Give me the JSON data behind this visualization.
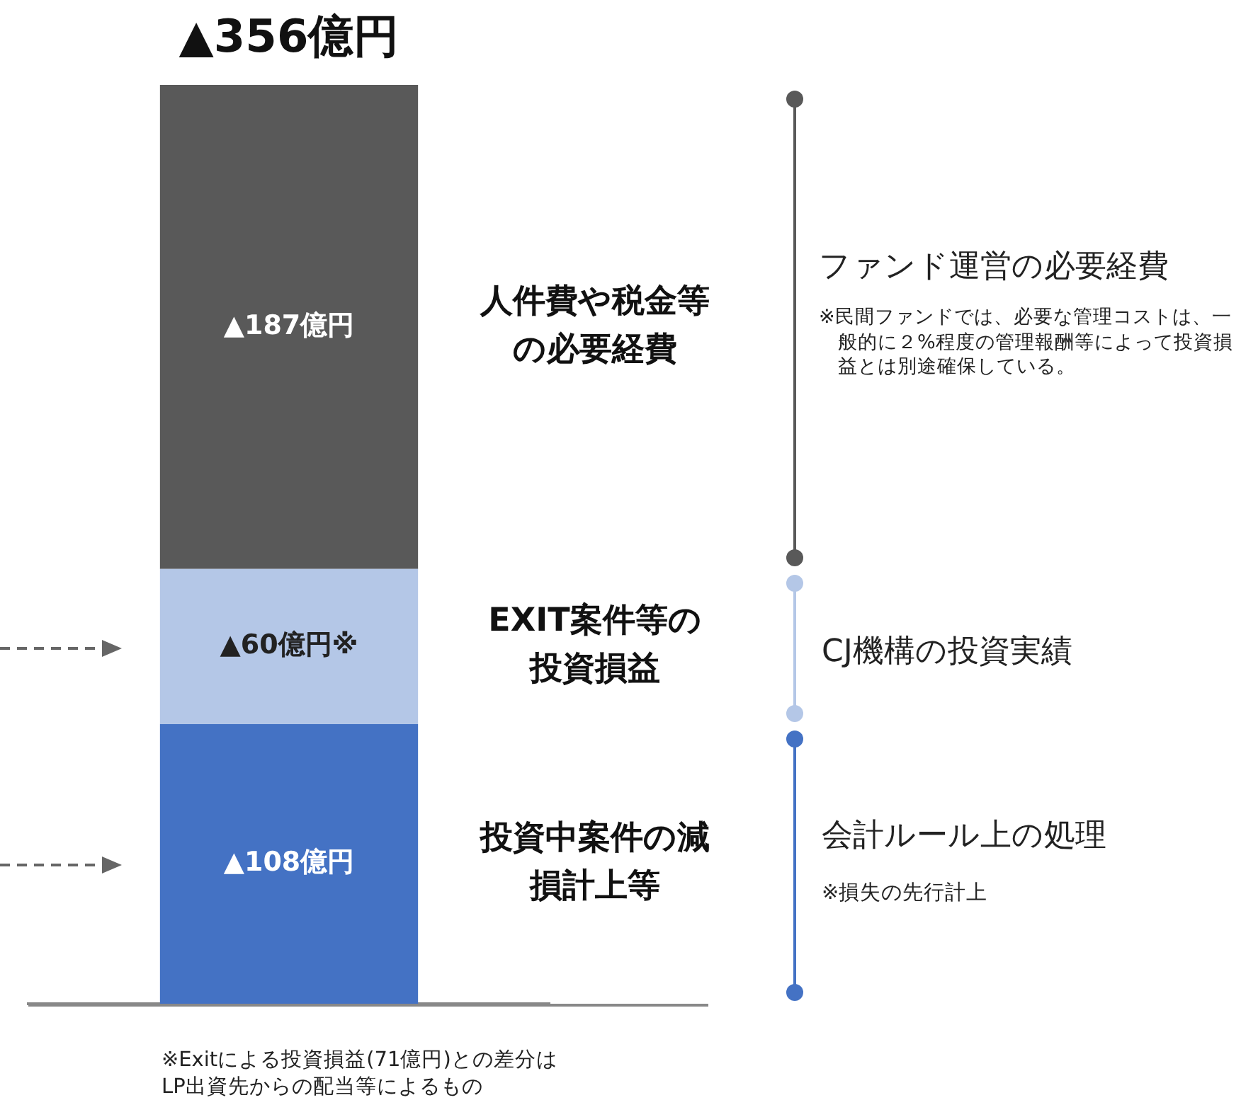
{
  "chart_data": {
    "type": "bar",
    "stacked": true,
    "categories": [
      null
    ],
    "series": [
      {
        "name": "投資中案件の減損計上等",
        "color": "#4472c4",
        "values": [
          108
        ],
        "value_labels": [
          "▲108億円"
        ]
      },
      {
        "name": "EXIT案件等の投資損益",
        "color": "#b4c7e7",
        "values": [
          60
        ],
        "value_labels": [
          "▲60億円※"
        ]
      },
      {
        "name": "人件費や税金等の必要経費",
        "color": "#595959",
        "values": [
          187
        ],
        "value_labels": [
          "▲187億円"
        ]
      }
    ],
    "totals": [
      "▲356億円"
    ],
    "annotations": [
      "ファンド運営の必要経費",
      "※民間ファンドでは、必要な管理コストは、一般的に２%程度の管理報酬等によって投資損益とは別途確保している。",
      "CJ機構の投資実績",
      "会計ルール上の処理",
      "※損失の先行計上",
      "※Exitによる投資損益(71億円)との差分は\nLP出資先からの配当等によるもの"
    ],
    "legend": false
  }
}
